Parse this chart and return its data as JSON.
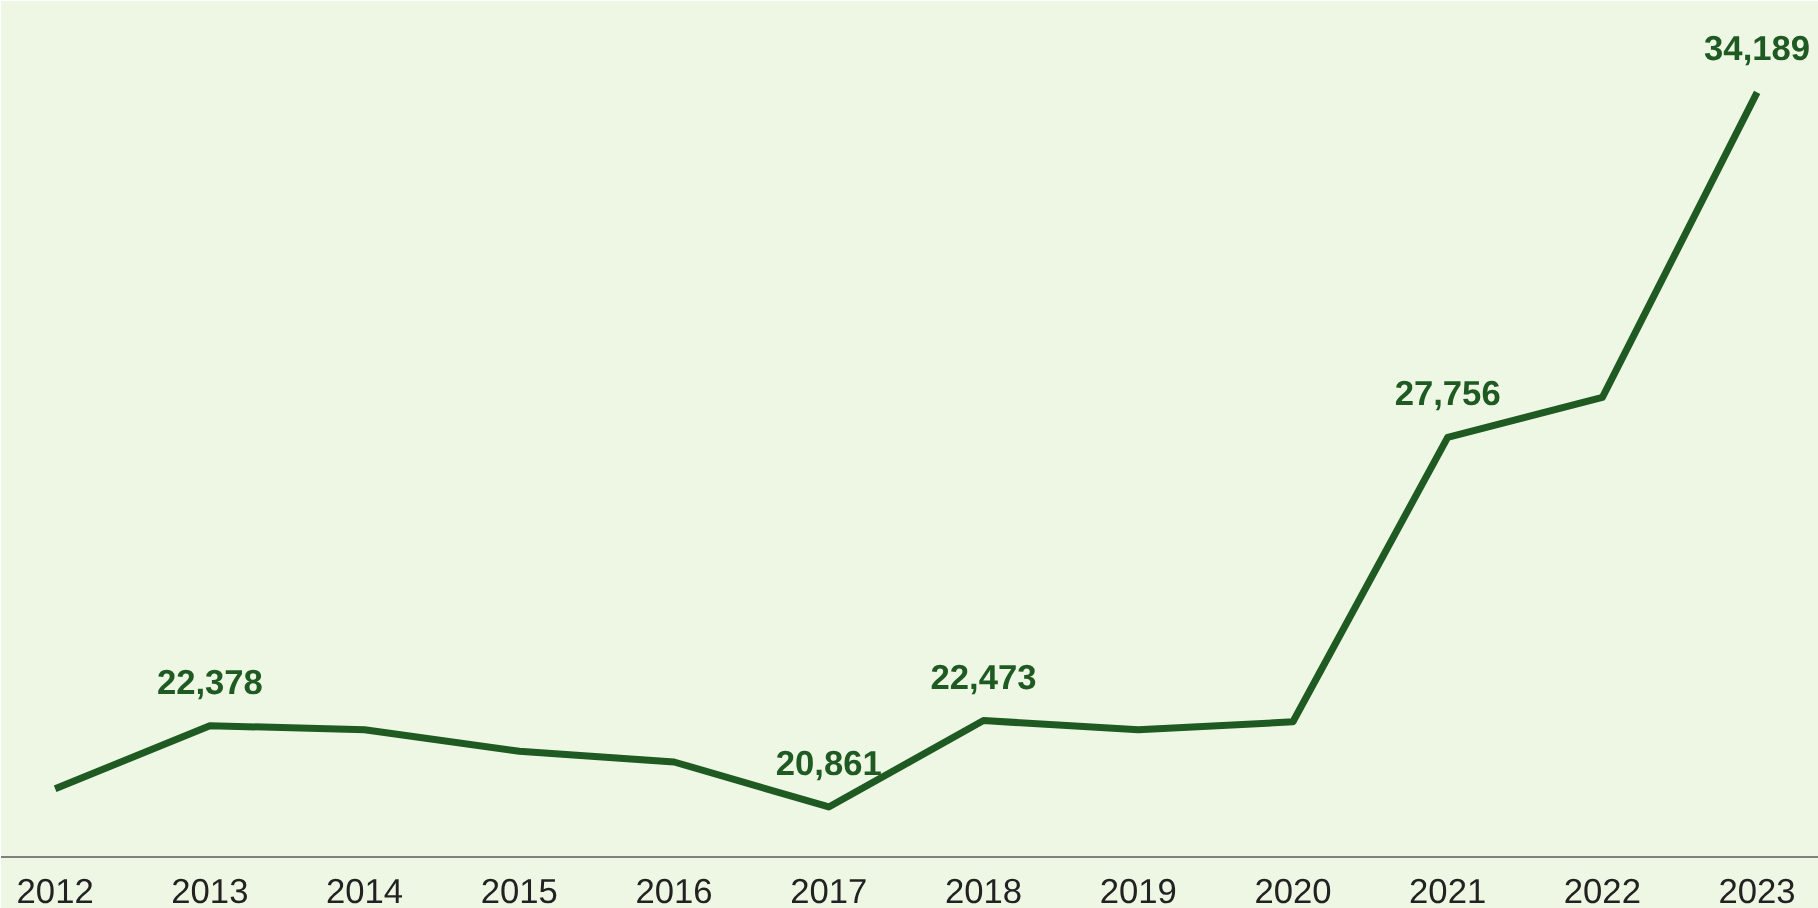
{
  "chart_data": {
    "type": "line",
    "categories": [
      "2012",
      "2013",
      "2014",
      "2015",
      "2016",
      "2017",
      "2018",
      "2019",
      "2020",
      "2021",
      "2022",
      "2023"
    ],
    "series": [
      {
        "color": "#1e5a22",
        "values": [
          21200,
          22378,
          22300,
          21900,
          21700,
          20861,
          22473,
          22300,
          22450,
          27756,
          28500,
          34189
        ],
        "value_labels": [
          null,
          "22,378",
          null,
          null,
          null,
          "20,861",
          "22,473",
          null,
          null,
          "27,756",
          null,
          "34,189"
        ]
      }
    ],
    "grid": false,
    "marker": "none",
    "line_style": "solid"
  }
}
